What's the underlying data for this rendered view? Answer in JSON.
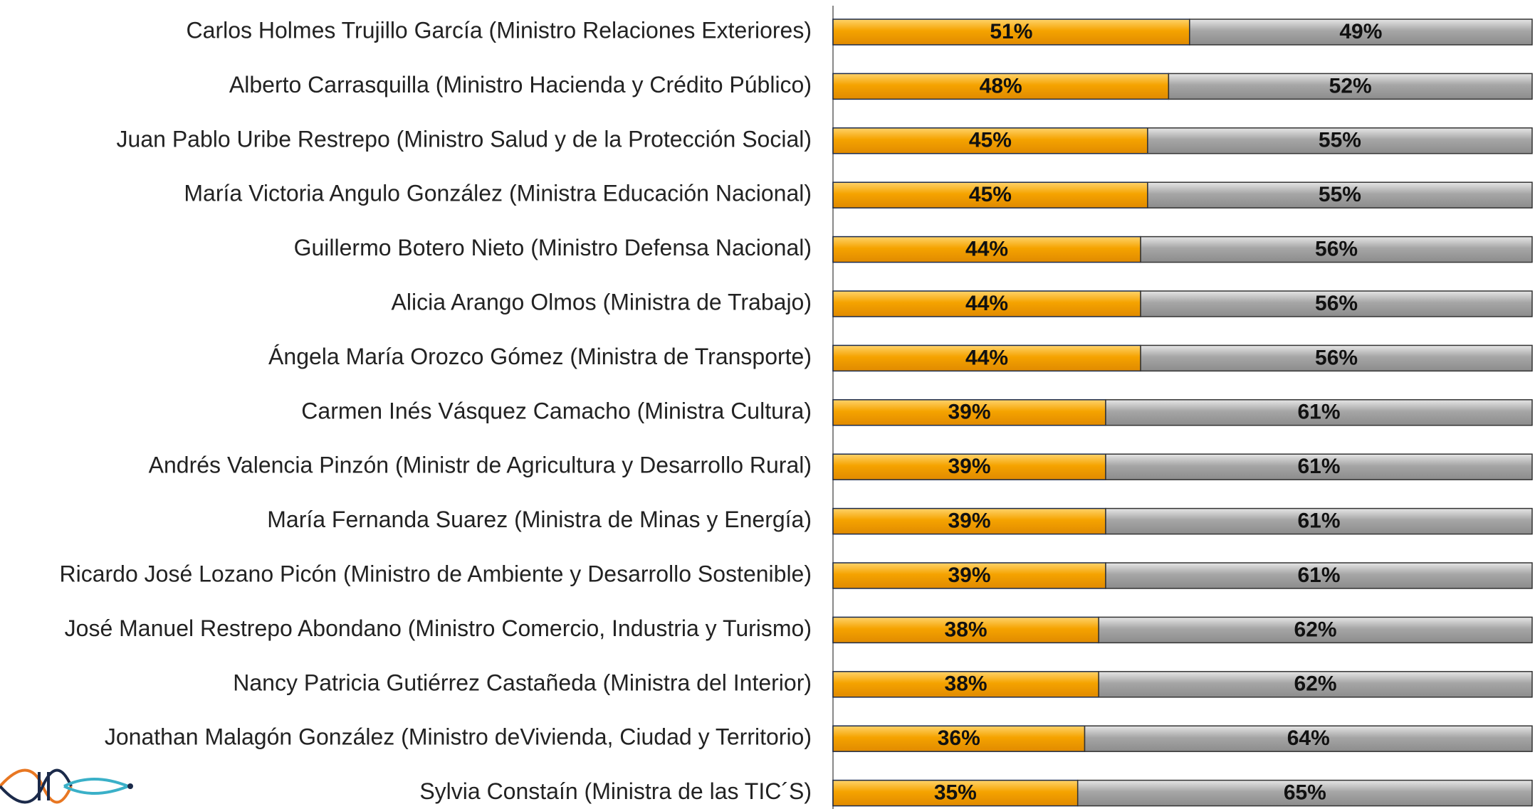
{
  "chart_data": {
    "type": "stacked_barh",
    "categories": [
      "Carlos Holmes Trujillo García  (Ministro Relaciones Exteriores)",
      "Alberto Carrasquilla  (Ministro Hacienda y Crédito Público)",
      "Juan Pablo Uribe Restrepo (Ministro Salud y de la Protección Social)",
      "María Victoria Angulo González (Ministra Educación Nacional)",
      "Guillermo Botero Nieto (Ministro Defensa Nacional)",
      "Alicia Arango Olmos (Ministra de Trabajo)",
      "Ángela María Orozco Gómez  (Ministra de Transporte)",
      "Carmen Inés Vásquez Camacho (Ministra Cultura)",
      "Andrés Valencia Pinzón (Ministr de Agricultura y Desarrollo Rural)",
      "María Fernanda Suarez (Ministra de Minas y Energía)",
      "Ricardo José Lozano Picón (Ministro de Ambiente y Desarrollo Sostenible)",
      "José Manuel Restrepo Abondano (Ministro Comercio, Industria y Turismo)",
      "Nancy Patricia Gutiérrez Castañeda (Ministra del Interior)",
      "Jonathan Malagón González  (Ministro deVivienda, Ciudad y Territorio)",
      "Sylvia Constaín (Ministra de las TIC´S)"
    ],
    "series": [
      {
        "color": "#f5a300",
        "values": [
          51,
          48,
          45,
          45,
          44,
          44,
          44,
          39,
          39,
          39,
          39,
          38,
          38,
          36,
          35
        ],
        "value_labels": [
          "51%",
          "48%",
          "45%",
          "45%",
          "44%",
          "44%",
          "44%",
          "39%",
          "39%",
          "39%",
          "39%",
          "38%",
          "38%",
          "36%",
          "35%"
        ]
      },
      {
        "color": "#a6a6a6",
        "values": [
          49,
          52,
          55,
          55,
          56,
          56,
          56,
          61,
          61,
          61,
          61,
          62,
          62,
          64,
          65
        ],
        "value_labels": [
          "49%",
          "52%",
          "55%",
          "55%",
          "56%",
          "56%",
          "56%",
          "61%",
          "61%",
          "61%",
          "61%",
          "62%",
          "62%",
          "64%",
          "65%"
        ]
      }
    ],
    "xlim": [
      0,
      100
    ]
  }
}
